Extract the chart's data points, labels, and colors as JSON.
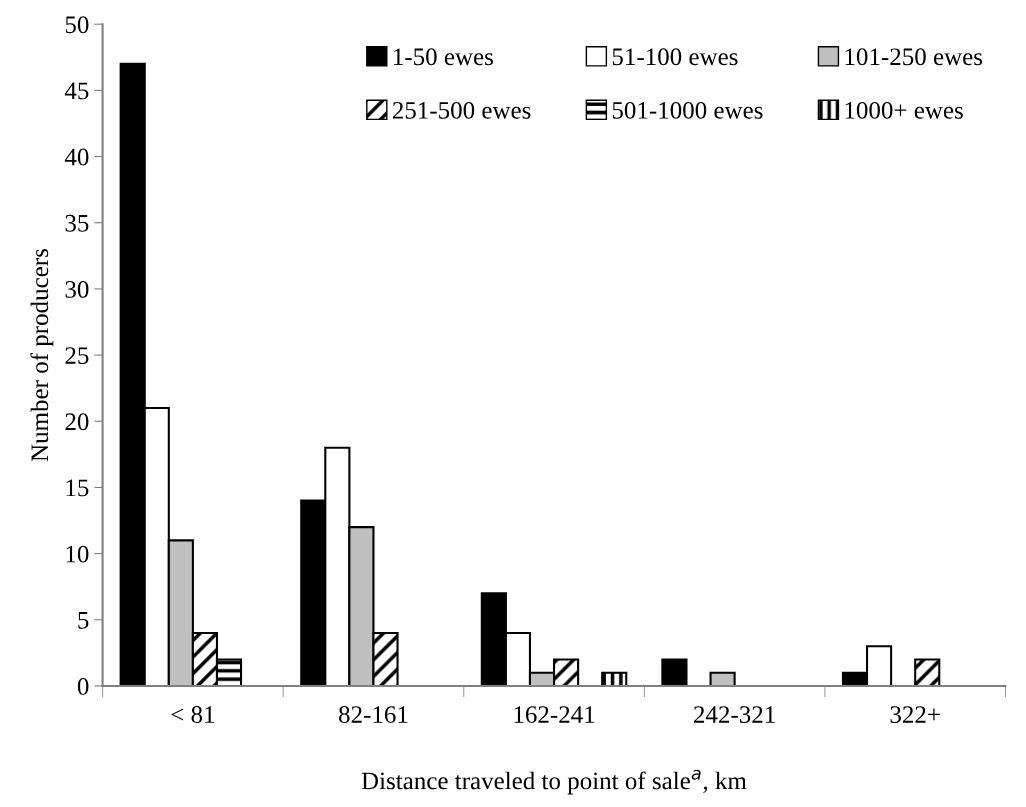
{
  "chart_data": {
    "type": "bar",
    "xlabel": "Distance traveled to point of sale$^{a}$, km",
    "ylabel": "Number of producers",
    "categories": [
      "< 81",
      "82-161",
      "162-241",
      "242-321",
      "322+"
    ],
    "series": [
      {
        "name": "1-50 ewes",
        "color": "#000000",
        "values": [
          47,
          14,
          7,
          2,
          1
        ]
      },
      {
        "name": "51-100 ewes",
        "color": "#ffffff",
        "values": [
          21,
          18,
          4,
          0,
          3
        ]
      },
      {
        "name": "101-250 ewes",
        "color": "#c0c0c0",
        "values": [
          11,
          12,
          1,
          1,
          0
        ]
      },
      {
        "name": "251-500 ewes",
        "color": "#000000",
        "values": [
          4,
          4,
          2,
          0,
          2
        ]
      },
      {
        "name": "501-1000 ewes",
        "color": "#000000",
        "values": [
          2,
          0,
          0,
          0,
          0
        ]
      },
      {
        "name": "1000+ ewes",
        "color": "#000000",
        "values": [
          0,
          0,
          1,
          0,
          0
        ]
      }
    ],
    "ylim": [
      0,
      50
    ],
    "yticks": [
      0,
      5,
      10,
      15,
      20,
      25,
      30,
      35,
      40,
      45,
      50
    ],
    "grid": false,
    "legend": "top right"
  }
}
